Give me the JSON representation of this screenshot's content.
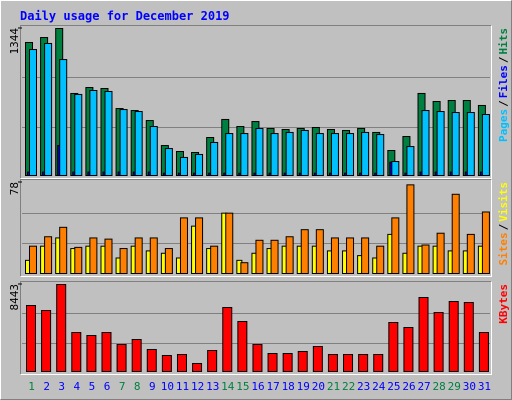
{
  "chart_data": [
    {
      "type": "bar",
      "title": "Daily usage for December 2019",
      "categories": [
        "1",
        "2",
        "3",
        "4",
        "5",
        "6",
        "7",
        "8",
        "9",
        "10",
        "11",
        "12",
        "13",
        "14",
        "15",
        "16",
        "17",
        "18",
        "19",
        "20",
        "21",
        "22",
        "23",
        "24",
        "25",
        "26",
        "27",
        "28",
        "29",
        "30",
        "31"
      ],
      "category_colors": [
        "#008040",
        "#0000ff",
        "#0000ff",
        "#0000ff",
        "#0000ff",
        "#0000ff",
        "#008040",
        "#008040",
        "#0000ff",
        "#0000ff",
        "#0000ff",
        "#0000ff",
        "#0000ff",
        "#008040",
        "#008040",
        "#0000ff",
        "#0000ff",
        "#0000ff",
        "#0000ff",
        "#0000ff",
        "#008040",
        "#008040",
        "#0000ff",
        "#0000ff",
        "#0000ff",
        "#0000ff",
        "#0000ff",
        "#008040",
        "#008040",
        "#0000ff",
        "#0000ff"
      ],
      "legend_separator": "/",
      "ylim": [
        0,
        1344
      ],
      "yticks": [
        1344
      ],
      "series": [
        {
          "name": "Hits",
          "color": "#008040",
          "values": [
            1217,
            1262,
            1344,
            754,
            808,
            799,
            617,
            599,
            508,
            281,
            227,
            218,
            354,
            518,
            454,
            499,
            436,
            427,
            436,
            445,
            427,
            418,
            436,
            400,
            236,
            363,
            754,
            681,
            690,
            690,
            645
          ]
        },
        {
          "name": "Files",
          "color": "#0000ff",
          "values": [
            40,
            40,
            281,
            40,
            40,
            40,
            40,
            40,
            40,
            30,
            30,
            30,
            30,
            30,
            30,
            30,
            30,
            30,
            30,
            30,
            30,
            30,
            30,
            30,
            130,
            30,
            40,
            40,
            40,
            40,
            40
          ]
        },
        {
          "name": "Pages",
          "color": "#00c0ff",
          "values": [
            1153,
            1208,
            1062,
            745,
            781,
            772,
            608,
            590,
            454,
            254,
            173,
            200,
            309,
            390,
            390,
            436,
            390,
            400,
            418,
            390,
            390,
            390,
            400,
            381,
            136,
            272,
            599,
            590,
            581,
            581,
            563
          ]
        }
      ]
    },
    {
      "type": "bar",
      "ylim": [
        0,
        78
      ],
      "yticks": [
        78
      ],
      "series": [
        {
          "name": "Visits",
          "color": "#ffff00",
          "values": [
            12,
            24,
            31,
            22,
            24,
            24,
            14,
            24,
            20,
            18,
            14,
            41,
            22,
            52,
            12,
            18,
            22,
            24,
            24,
            24,
            20,
            20,
            16,
            14,
            34,
            18,
            24,
            24,
            20,
            20,
            24
          ]
        },
        {
          "name": "Sites",
          "color": "#ff8000",
          "values": [
            24,
            32,
            40,
            23,
            31,
            30,
            22,
            31,
            31,
            22,
            48,
            48,
            24,
            52,
            10,
            29,
            29,
            32,
            38,
            38,
            31,
            31,
            31,
            24,
            48,
            76,
            25,
            35,
            68,
            34,
            53
          ]
        }
      ]
    },
    {
      "type": "bar",
      "ylim": [
        0,
        8443
      ],
      "yticks": [
        8443
      ],
      "series": [
        {
          "name": "KBytes",
          "color": "#ff0000",
          "values": [
            6427,
            5947,
            8443,
            3837,
            3549,
            3837,
            2686,
            3166,
            2207,
            1631,
            1727,
            864,
            2111,
            6235,
            4893,
            2686,
            1823,
            1823,
            2015,
            2494,
            1727,
            1727,
            1727,
            1727,
            4797,
            4317,
            7196,
            5756,
            6811,
            6715,
            3837
          ]
        }
      ]
    }
  ]
}
